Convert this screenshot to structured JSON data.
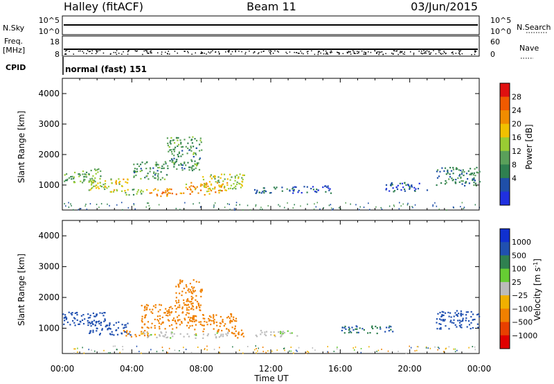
{
  "header": {
    "station": "Halley (fitACF)",
    "beam": "Beam 11",
    "date": "03/Jun/2015"
  },
  "status_panel": {
    "nsky_label": "N.Sky",
    "nsearch_label": "N.Search",
    "nsky_ticks": [
      "10^5",
      "10^0"
    ],
    "nsearch_ticks": [
      "10^5",
      "10^0"
    ],
    "freq_label": "Freq.",
    "freq_unit": "[MHz]",
    "freq_ticks": [
      "18",
      "8"
    ],
    "nave_label": "Nave",
    "nave_ticks": [
      "60",
      "0"
    ],
    "cpid_label": "CPID",
    "cpid_value": "normal (fast) 151"
  },
  "colors": {
    "power_scale": [
      "#2030e0",
      "#1f4fa8",
      "#2f8050",
      "#5aa05a",
      "#99cc33",
      "#f0c000",
      "#f08c00",
      "#f05a00",
      "#e01010"
    ],
    "velocity_scale": [
      "#1030d0",
      "#2050b0",
      "#2f8050",
      "#66cc33",
      "#bbbbbb",
      "#f0b000",
      "#f08000",
      "#e84000",
      "#e00000"
    ],
    "frame": "#000000"
  },
  "chart_data": [
    {
      "type": "heatmap",
      "name": "power",
      "ylabel": "Slant Range [km]",
      "colorbar_label": "Power [dB]",
      "colorbar_ticks": [
        "28",
        "24",
        "20",
        "16",
        "12",
        "8",
        "4"
      ],
      "ylim": [
        180,
        4500
      ],
      "yticks": [
        "4000",
        "3000",
        "2000",
        "1000"
      ],
      "xlim_hours": [
        0,
        24
      ],
      "regions": [
        {
          "t": [
            0.0,
            2.2
          ],
          "r": [
            1100,
            1550
          ],
          "v": 14
        },
        {
          "t": [
            1.5,
            3.8
          ],
          "r": [
            800,
            1250
          ],
          "v": 20
        },
        {
          "t": [
            3.5,
            5.0
          ],
          "r": [
            700,
            900
          ],
          "v": 16
        },
        {
          "t": [
            4.0,
            6.0
          ],
          "r": [
            1200,
            1800
          ],
          "v": 12
        },
        {
          "t": [
            5.0,
            7.0
          ],
          "r": [
            650,
            900
          ],
          "v": 26
        },
        {
          "t": [
            6.0,
            8.0
          ],
          "r": [
            1500,
            2600
          ],
          "v": 12
        },
        {
          "t": [
            7.0,
            9.5
          ],
          "r": [
            700,
            1100
          ],
          "v": 24
        },
        {
          "t": [
            8.0,
            10.5
          ],
          "r": [
            900,
            1400
          ],
          "v": 18
        },
        {
          "t": [
            11.0,
            13.0
          ],
          "r": [
            750,
            950
          ],
          "v": 8
        },
        {
          "t": [
            13.0,
            15.5
          ],
          "r": [
            750,
            1000
          ],
          "v": 6
        },
        {
          "t": [
            18.5,
            21.0
          ],
          "r": [
            800,
            1100
          ],
          "v": 6
        },
        {
          "t": [
            21.5,
            24.0
          ],
          "r": [
            1000,
            1600
          ],
          "v": 10
        }
      ]
    },
    {
      "type": "heatmap",
      "name": "velocity",
      "ylabel": "Slant Range [km]",
      "colorbar_label": "Velocity [m s^-1]",
      "colorbar_ticks": [
        "1000",
        "500",
        "100",
        "25",
        "-25",
        "-100",
        "-500",
        "-1000"
      ],
      "ylim": [
        180,
        4500
      ],
      "yticks": [
        "4000",
        "3000",
        "2000",
        "1000"
      ],
      "xlim_hours": [
        0,
        24
      ],
      "xticks": [
        "00:00",
        "04:00",
        "08:00",
        "12:00",
        "16:00",
        "20:00",
        "00:00"
      ],
      "xlabel": "Time UT",
      "regions": [
        {
          "t": [
            0.0,
            2.5
          ],
          "r": [
            1100,
            1550
          ],
          "v": 200
        },
        {
          "t": [
            1.5,
            4.0
          ],
          "r": [
            800,
            1250
          ],
          "v": 150
        },
        {
          "t": [
            3.5,
            5.0
          ],
          "r": [
            750,
            950
          ],
          "v": -150
        },
        {
          "t": [
            4.5,
            7.5
          ],
          "r": [
            1000,
            1800
          ],
          "v": -200
        },
        {
          "t": [
            6.5,
            8.0
          ],
          "r": [
            1600,
            2600
          ],
          "v": -150
        },
        {
          "t": [
            4.5,
            9.5
          ],
          "r": [
            700,
            900
          ],
          "v": 0
        },
        {
          "t": [
            7.5,
            10.0
          ],
          "r": [
            900,
            1500
          ],
          "v": -250
        },
        {
          "t": [
            9.5,
            10.5
          ],
          "r": [
            700,
            1000
          ],
          "v": -150
        },
        {
          "t": [
            11.0,
            13.5
          ],
          "r": [
            750,
            950
          ],
          "v": 0
        },
        {
          "t": [
            16.0,
            19.0
          ],
          "r": [
            850,
            1100
          ],
          "v": 100
        },
        {
          "t": [
            21.5,
            24.0
          ],
          "r": [
            1000,
            1600
          ],
          "v": 150
        }
      ]
    }
  ]
}
